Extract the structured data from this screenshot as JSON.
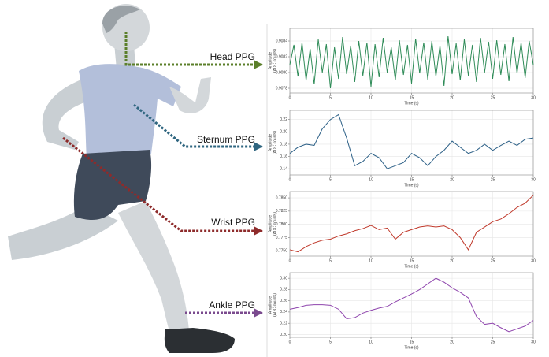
{
  "chart_data": [
    {
      "type": "line",
      "annotation": "Head PPG",
      "xlabel": "Time (s)",
      "ylabel": [
        "Amplitude",
        "(ADC counts)"
      ],
      "xlim": [
        0,
        30
      ],
      "xticks": [
        0,
        5,
        10,
        15,
        20,
        25,
        30
      ],
      "ylim": [
        0.90774,
        0.90856
      ],
      "yticks": [
        0.9078,
        {
          "value": 0.908,
          "label": "0.9080"
        },
        0.9082,
        0.9084
      ],
      "grid": true,
      "x": [
        0,
        0.5,
        1,
        1.5,
        2,
        2.5,
        3,
        3.5,
        4,
        4.5,
        5,
        5.5,
        6,
        6.5,
        7,
        7.5,
        8,
        8.5,
        9,
        9.5,
        10,
        10.5,
        11,
        11.5,
        12,
        12.5,
        13,
        13.5,
        14,
        14.5,
        15,
        15.5,
        16,
        16.5,
        17,
        17.5,
        18,
        18.5,
        19,
        19.5,
        20,
        20.5,
        21,
        21.5,
        22,
        22.5,
        23,
        23.5,
        24,
        24.5,
        25,
        25.5,
        26,
        26.5,
        27,
        27.5,
        28,
        28.5,
        29,
        29.5,
        30
      ],
      "series": [
        {
          "name": "Head PPG",
          "color": "#2e8b57",
          "values": [
            0.9081,
            0.90835,
            0.90795,
            0.90838,
            0.9079,
            0.9083,
            0.90785,
            0.90842,
            0.908,
            0.90836,
            0.9078,
            0.90832,
            0.90792,
            0.90845,
            0.90798,
            0.90834,
            0.90788,
            0.9084,
            0.90796,
            0.90838,
            0.90782,
            0.90836,
            0.90794,
            0.90844,
            0.908,
            0.90832,
            0.9079,
            0.90841,
            0.90797,
            0.90835,
            0.90786,
            0.90843,
            0.90799,
            0.90838,
            0.90791,
            0.9084,
            0.90795,
            0.90834,
            0.90783,
            0.90846,
            0.90798,
            0.90837,
            0.9079,
            0.90842,
            0.90796,
            0.90835,
            0.90788,
            0.90844,
            0.908,
            0.90839,
            0.90792,
            0.90841,
            0.90797,
            0.90836,
            0.90789,
            0.90845,
            0.90799,
            0.90838,
            0.90793,
            0.9084,
            0.9081
          ]
        }
      ]
    },
    {
      "type": "line",
      "annotation": "Sternum PPG",
      "xlabel": "Time (s)",
      "ylabel": [
        "Amplitude",
        "(ADC counts)"
      ],
      "xlim": [
        0,
        30
      ],
      "xticks": [
        0,
        5,
        10,
        15,
        20,
        25,
        30
      ],
      "ylim": [
        0.13,
        0.235
      ],
      "yticks": [
        0.14,
        0.16,
        0.18,
        {
          "value": 0.2,
          "label": "0.20"
        },
        0.22
      ],
      "grid": true,
      "x": [
        0,
        1,
        2,
        3,
        4,
        5,
        6,
        7,
        8,
        9,
        10,
        11,
        12,
        13,
        14,
        15,
        16,
        17,
        18,
        19,
        20,
        21,
        22,
        23,
        24,
        25,
        26,
        27,
        28,
        29,
        30
      ],
      "series": [
        {
          "name": "Sternum PPG",
          "color": "#2b5f86",
          "values": [
            0.165,
            0.175,
            0.18,
            0.178,
            0.205,
            0.22,
            0.228,
            0.19,
            0.145,
            0.152,
            0.165,
            0.158,
            0.14,
            0.145,
            0.15,
            0.165,
            0.158,
            0.145,
            0.16,
            0.17,
            0.185,
            0.175,
            0.165,
            0.17,
            0.18,
            0.17,
            0.178,
            0.185,
            0.178,
            0.188,
            0.19
          ]
        }
      ]
    },
    {
      "type": "line",
      "annotation": "Wrist PPG",
      "xlabel": "Time (s)",
      "ylabel": [
        "Amplitude",
        "(ADC counts)"
      ],
      "xlim": [
        0,
        30
      ],
      "xticks": [
        0,
        5,
        10,
        15,
        20,
        25,
        30
      ],
      "ylim": [
        0.774,
        0.7862
      ],
      "yticks": [
        {
          "value": 0.775,
          "label": "0.7750"
        },
        0.7775,
        {
          "value": 0.78,
          "label": "0.7800"
        },
        0.7825,
        {
          "value": 0.785,
          "label": "0.7850"
        }
      ],
      "grid": true,
      "x": [
        0,
        1,
        2,
        3,
        4,
        5,
        6,
        7,
        8,
        9,
        10,
        11,
        12,
        13,
        14,
        15,
        16,
        17,
        18,
        19,
        20,
        21,
        22,
        23,
        24,
        25,
        26,
        27,
        28,
        29,
        30
      ],
      "series": [
        {
          "name": "Wrist PPG",
          "color": "#c0392b",
          "values": [
            0.7752,
            0.7748,
            0.7758,
            0.7765,
            0.777,
            0.7772,
            0.7778,
            0.7782,
            0.7788,
            0.7792,
            0.7798,
            0.779,
            0.7793,
            0.7772,
            0.7785,
            0.779,
            0.7795,
            0.7797,
            0.7795,
            0.7797,
            0.779,
            0.7775,
            0.7752,
            0.7785,
            0.7795,
            0.7805,
            0.781,
            0.782,
            0.7832,
            0.784,
            0.7855
          ]
        }
      ]
    },
    {
      "type": "line",
      "annotation": "Ankle PPG",
      "xlabel": "Time (s)",
      "ylabel": [
        "Amplitude",
        "(ADC counts)"
      ],
      "xlim": [
        0,
        30
      ],
      "xticks": [
        0,
        5,
        10,
        15,
        20,
        25,
        30
      ],
      "ylim": [
        0.195,
        0.31
      ],
      "yticks": [
        {
          "value": 0.2,
          "label": "0.20"
        },
        0.22,
        0.24,
        0.26,
        0.28,
        {
          "value": 0.3,
          "label": "0.30"
        }
      ],
      "grid": true,
      "x": [
        0,
        1,
        2,
        3,
        4,
        5,
        6,
        7,
        8,
        9,
        10,
        11,
        12,
        13,
        14,
        15,
        16,
        17,
        18,
        19,
        20,
        21,
        22,
        23,
        24,
        25,
        26,
        27,
        28,
        29,
        30
      ],
      "series": [
        {
          "name": "Ankle PPG",
          "color": "#8e44ad",
          "values": [
            0.245,
            0.248,
            0.252,
            0.253,
            0.253,
            0.252,
            0.245,
            0.228,
            0.23,
            0.238,
            0.243,
            0.247,
            0.25,
            0.258,
            0.265,
            0.272,
            0.28,
            0.29,
            0.3,
            0.293,
            0.283,
            0.275,
            0.265,
            0.232,
            0.218,
            0.22,
            0.212,
            0.205,
            0.21,
            0.215,
            0.225
          ]
        }
      ]
    }
  ]
}
